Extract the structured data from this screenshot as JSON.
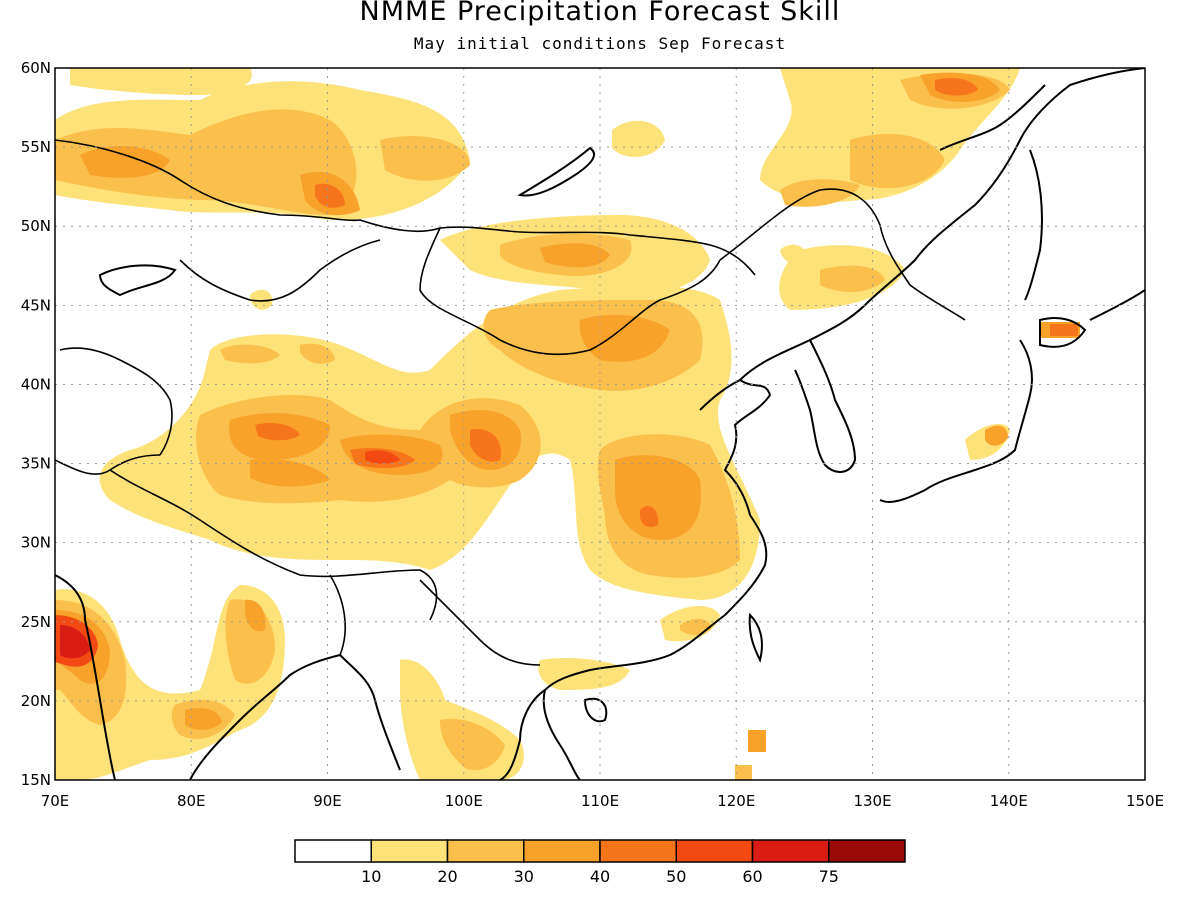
{
  "title": "NMME Precipitation Forecast Skill",
  "subtitle": "May initial conditions  Sep Forecast",
  "map": {
    "lon_range": [
      70,
      150
    ],
    "lat_range": [
      15,
      60
    ],
    "lon_ticks": [
      "70E",
      "80E",
      "90E",
      "100E",
      "110E",
      "120E",
      "130E",
      "140E",
      "150E"
    ],
    "lat_ticks": [
      "15N",
      "20N",
      "25N",
      "30N",
      "35N",
      "40N",
      "45N",
      "50N",
      "55N",
      "60N"
    ],
    "gridlines": "dotted"
  },
  "colorbar": {
    "colors": [
      "#ffffff",
      "#fde27a",
      "#fbbf4c",
      "#f9a22a",
      "#f7751a",
      "#f24a12",
      "#d91c14",
      "#9b0a06"
    ],
    "labels": [
      "10",
      "20",
      "30",
      "40",
      "50",
      "60",
      "75"
    ]
  },
  "palette": {
    "c10": "#fde27a",
    "c20": "#fbbf4c",
    "c30": "#f9a22a",
    "c40": "#f7751a",
    "c50": "#f24a12",
    "c60": "#d91c14"
  }
}
